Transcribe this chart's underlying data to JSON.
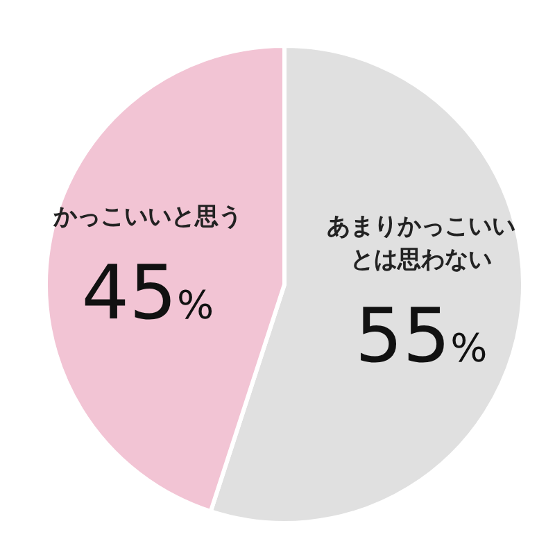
{
  "chart_data": {
    "type": "pie",
    "categories": [
      "あまりかっこいいとは思わない",
      "かっこいいと思う"
    ],
    "values": [
      55,
      45
    ],
    "colors": [
      "#e0e0e0",
      "#f2c4d4"
    ],
    "value_labels": [
      "55%",
      "45%"
    ],
    "legend": false
  }
}
